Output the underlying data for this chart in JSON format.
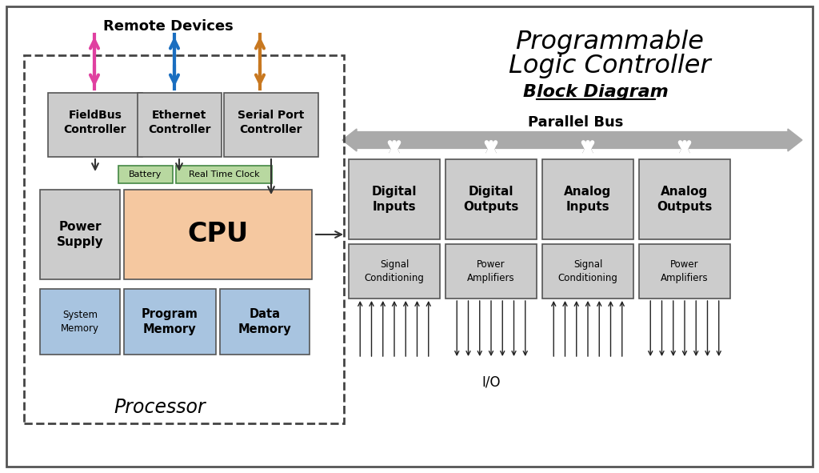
{
  "title_line1": "Programmable",
  "title_line2": "Logic Controller",
  "subtitle": "Block Diagram",
  "remote_devices_label": "Remote Devices",
  "parallel_bus_label": "Parallel Bus",
  "processor_label": "Processor",
  "io_label": "I/O",
  "bg_color": "#ffffff",
  "box_gray": "#cccccc",
  "box_blue": "#a8c4e0",
  "box_orange": "#f5c8a0",
  "box_green": "#b8d8a0",
  "arrow_pink": "#e040a0",
  "arrow_blue": "#1a6ec0",
  "arrow_orange": "#c87820",
  "arrow_gray": "#aaaaaa"
}
